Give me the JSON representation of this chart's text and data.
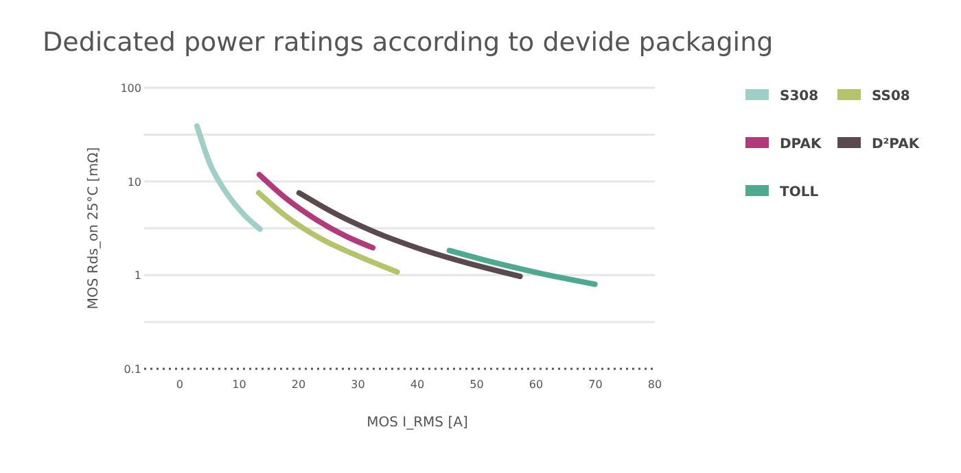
{
  "chart_data": {
    "type": "line",
    "title": "Dedicated power ratings according to devide packaging",
    "xlabel": "MOS I_RMS [A]",
    "ylabel": "MOS Rds_on 25°C [mΩ]",
    "log": "y",
    "grid": "y",
    "legend": "right",
    "line_style": "solid",
    "marker": "none",
    "xlim": [
      -6,
      80
    ],
    "xticks": [
      0,
      10,
      20,
      30,
      40,
      50,
      60,
      70,
      80
    ],
    "ylim": [
      0.1,
      100
    ],
    "yticks": [
      0.1,
      {
        "value": 0.316,
        "label": null
      },
      1,
      {
        "value": 3.16,
        "label": null
      },
      10,
      {
        "value": 31.6,
        "label": null
      },
      100
    ],
    "series": [
      {
        "name": "S308",
        "color": "#9fcfc6",
        "x": [
          2.9,
          5,
          8,
          11,
          13.5
        ],
        "values": [
          39,
          15.9,
          7.3,
          4.3,
          3.1
        ]
      },
      {
        "name": "SS08",
        "color": "#b5c46a",
        "x": [
          13.3,
          18,
          24,
          30,
          36.6
        ],
        "values": [
          7.55,
          4.2,
          2.4,
          1.6,
          1.08
        ]
      },
      {
        "name": "DPAK",
        "color": "#b03a7c",
        "x": [
          13.4,
          18,
          23,
          28,
          32.5
        ],
        "values": [
          11.8,
          6.5,
          3.9,
          2.6,
          1.96
        ]
      },
      {
        "name": "D²PAK",
        "color": "#5a4a4e",
        "x": [
          20.1,
          26,
          33,
          40,
          48,
          57.3
        ],
        "values": [
          7.55,
          4.6,
          2.85,
          1.95,
          1.37,
          0.97
        ]
      },
      {
        "name": "TOLL",
        "color": "#4fa98e",
        "x": [
          45.4,
          52,
          60,
          69.9
        ],
        "values": [
          1.83,
          1.41,
          1.07,
          0.8
        ]
      }
    ]
  }
}
